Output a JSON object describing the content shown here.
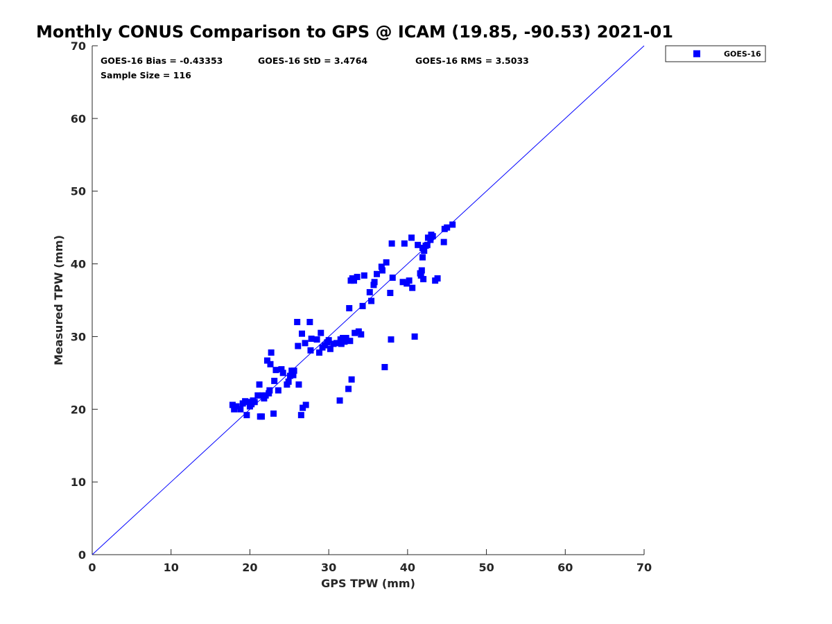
{
  "chart_data": {
    "type": "scatter",
    "title": "Monthly CONUS Comparison to GPS @ ICAM (19.85, -90.53) 2021-01",
    "xlabel": "GPS TPW (mm)",
    "ylabel": "Measured TPW (mm)",
    "xlim": [
      0,
      70
    ],
    "ylim": [
      0,
      70
    ],
    "xticks": [
      0,
      10,
      20,
      30,
      40,
      50,
      60,
      70
    ],
    "yticks": [
      0,
      10,
      20,
      30,
      40,
      50,
      60,
      70
    ],
    "grid": false,
    "legend_position": "outside-top-right",
    "reference_line": {
      "from": [
        0,
        0
      ],
      "to": [
        70,
        70
      ],
      "color": "#0000ff"
    },
    "annotations": {
      "bias": "GOES-16 Bias = -0.43353",
      "std": "GOES-16 StD = 3.4764",
      "rms": "GOES-16 RMS = 3.5033",
      "sample": "Sample Size = 116"
    },
    "series": [
      {
        "name": "GOES-16",
        "color": "#0000ff",
        "marker": "square",
        "points": [
          [
            17.8,
            20.6
          ],
          [
            18.0,
            20.0
          ],
          [
            18.3,
            20.4
          ],
          [
            18.8,
            20.0
          ],
          [
            19.1,
            20.8
          ],
          [
            19.4,
            21.1
          ],
          [
            19.6,
            19.2
          ],
          [
            19.8,
            21.0
          ],
          [
            20.0,
            20.4
          ],
          [
            20.2,
            20.7
          ],
          [
            20.4,
            21.2
          ],
          [
            20.6,
            21.0
          ],
          [
            21.0,
            21.9
          ],
          [
            21.2,
            23.4
          ],
          [
            21.3,
            19.0
          ],
          [
            21.5,
            19.0
          ],
          [
            21.6,
            21.9
          ],
          [
            21.8,
            21.5
          ],
          [
            22.0,
            21.9
          ],
          [
            22.2,
            26.7
          ],
          [
            22.4,
            22.2
          ],
          [
            22.5,
            22.6
          ],
          [
            22.6,
            26.2
          ],
          [
            22.7,
            27.8
          ],
          [
            23.0,
            19.4
          ],
          [
            23.1,
            23.9
          ],
          [
            23.3,
            25.4
          ],
          [
            23.6,
            22.6
          ],
          [
            24.0,
            25.5
          ],
          [
            24.2,
            25.0
          ],
          [
            24.7,
            23.4
          ],
          [
            24.9,
            23.8
          ],
          [
            25.1,
            24.6
          ],
          [
            25.3,
            25.3
          ],
          [
            25.5,
            24.7
          ],
          [
            25.6,
            25.3
          ],
          [
            26.0,
            32.0
          ],
          [
            26.1,
            28.7
          ],
          [
            26.2,
            23.4
          ],
          [
            26.5,
            19.2
          ],
          [
            26.6,
            30.4
          ],
          [
            26.7,
            20.2
          ],
          [
            27.0,
            29.1
          ],
          [
            27.1,
            20.6
          ],
          [
            27.6,
            32.0
          ],
          [
            27.7,
            28.1
          ],
          [
            27.8,
            29.7
          ],
          [
            28.5,
            29.6
          ],
          [
            28.8,
            27.8
          ],
          [
            29.0,
            30.5
          ],
          [
            29.2,
            28.5
          ],
          [
            29.5,
            28.8
          ],
          [
            29.8,
            29.2
          ],
          [
            30.0,
            29.5
          ],
          [
            30.2,
            28.3
          ],
          [
            30.6,
            29.0
          ],
          [
            31.0,
            29.1
          ],
          [
            31.4,
            21.2
          ],
          [
            31.5,
            29.6
          ],
          [
            31.6,
            29.0
          ],
          [
            31.8,
            29.8
          ],
          [
            32.0,
            29.3
          ],
          [
            32.2,
            29.8
          ],
          [
            32.5,
            22.8
          ],
          [
            32.6,
            33.9
          ],
          [
            32.7,
            29.4
          ],
          [
            32.8,
            37.7
          ],
          [
            32.9,
            24.1
          ],
          [
            33.0,
            38.0
          ],
          [
            33.2,
            37.7
          ],
          [
            33.3,
            30.5
          ],
          [
            33.6,
            38.2
          ],
          [
            33.8,
            30.7
          ],
          [
            34.1,
            30.3
          ],
          [
            34.3,
            34.2
          ],
          [
            34.5,
            38.4
          ],
          [
            35.2,
            36.1
          ],
          [
            35.4,
            34.9
          ],
          [
            35.7,
            37.1
          ],
          [
            35.8,
            37.5
          ],
          [
            36.1,
            38.6
          ],
          [
            36.7,
            39.6
          ],
          [
            36.8,
            39.1
          ],
          [
            37.1,
            25.8
          ],
          [
            37.3,
            40.2
          ],
          [
            37.8,
            36.0
          ],
          [
            37.9,
            29.6
          ],
          [
            38.0,
            42.8
          ],
          [
            38.1,
            38.1
          ],
          [
            39.4,
            37.5
          ],
          [
            39.6,
            42.8
          ],
          [
            39.9,
            37.3
          ],
          [
            40.2,
            37.7
          ],
          [
            40.5,
            43.6
          ],
          [
            40.6,
            36.7
          ],
          [
            40.9,
            30.0
          ],
          [
            41.3,
            42.6
          ],
          [
            41.6,
            38.7
          ],
          [
            41.7,
            38.4
          ],
          [
            41.8,
            39.1
          ],
          [
            41.9,
            40.9
          ],
          [
            41.9,
            42.2
          ],
          [
            42.0,
            37.9
          ],
          [
            42.1,
            41.8
          ],
          [
            42.3,
            42.5
          ],
          [
            42.5,
            42.6
          ],
          [
            42.6,
            43.6
          ],
          [
            42.9,
            43.3
          ],
          [
            43.0,
            44.0
          ],
          [
            43.2,
            43.8
          ],
          [
            43.5,
            37.7
          ],
          [
            43.8,
            38.0
          ],
          [
            44.6,
            43.0
          ],
          [
            44.7,
            44.8
          ],
          [
            45.0,
            45.0
          ],
          [
            45.7,
            45.4
          ]
        ]
      }
    ]
  }
}
